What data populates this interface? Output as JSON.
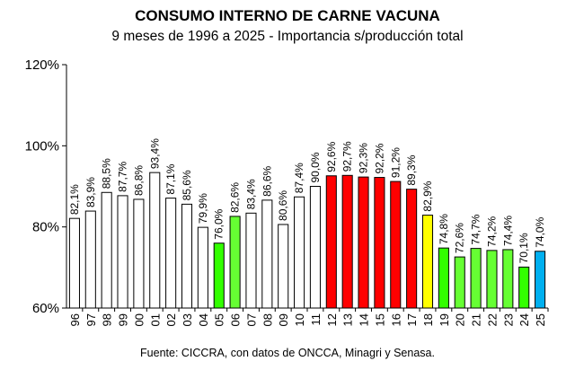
{
  "chart_data": {
    "type": "bar",
    "title": "CONSUMO INTERNO DE CARNE VACUNA",
    "subtitle": "9 meses de 1996 a 2025 - Importancia s/producción total",
    "source": "Fuente: CICCRA, con datos de ONCCA, Minagri y Senasa.",
    "ylim": [
      60,
      120
    ],
    "yticks": [
      60,
      80,
      100,
      120
    ],
    "ytick_labels": [
      "60%",
      "80%",
      "100%",
      "120%"
    ],
    "grid": false,
    "categories": [
      "96",
      "97",
      "98",
      "99",
      "00",
      "01",
      "02",
      "03",
      "04",
      "05",
      "06",
      "07",
      "08",
      "09",
      "10",
      "11",
      "12",
      "13",
      "14",
      "15",
      "16",
      "17",
      "18",
      "19",
      "20",
      "21",
      "22",
      "23",
      "24",
      "25"
    ],
    "values": [
      82.1,
      83.9,
      88.5,
      87.7,
      86.8,
      93.4,
      87.1,
      85.6,
      79.9,
      76.0,
      82.6,
      83.4,
      86.6,
      80.6,
      87.4,
      90.0,
      92.6,
      92.7,
      92.3,
      92.2,
      91.2,
      89.3,
      82.9,
      74.8,
      72.6,
      74.7,
      74.2,
      74.4,
      70.1,
      74.0
    ],
    "value_labels": [
      "82,1%",
      "83,9%",
      "88,5%",
      "87,7%",
      "86,8%",
      "93,4%",
      "87,1%",
      "85,6%",
      "79,9%",
      "76,0%",
      "82,6%",
      "83,4%",
      "86,6%",
      "80,6%",
      "87,4%",
      "90,0%",
      "92,6%",
      "92,7%",
      "92,3%",
      "92,2%",
      "91,2%",
      "89,3%",
      "82,9%",
      "74,8%",
      "72,6%",
      "74,7%",
      "74,2%",
      "74,4%",
      "70,1%",
      "74,0%"
    ],
    "bar_colors": [
      "#ffffff",
      "#ffffff",
      "#ffffff",
      "#ffffff",
      "#ffffff",
      "#ffffff",
      "#ffffff",
      "#ffffff",
      "#ffffff",
      "#33ff00",
      "#66ff33",
      "#ffffff",
      "#ffffff",
      "#ffffff",
      "#ffffff",
      "#ffffff",
      "#ff0000",
      "#ff0000",
      "#ff0000",
      "#ff0000",
      "#ff0000",
      "#ff0000",
      "#ffff00",
      "#33ff00",
      "#66ff33",
      "#66ff33",
      "#66ff33",
      "#66ff33",
      "#33ff00",
      "#00b0f0"
    ]
  }
}
